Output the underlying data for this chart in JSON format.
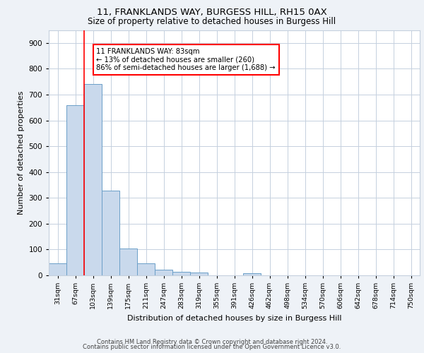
{
  "title_line1": "11, FRANKLANDS WAY, BURGESS HILL, RH15 0AX",
  "title_line2": "Size of property relative to detached houses in Burgess Hill",
  "xlabel": "Distribution of detached houses by size in Burgess Hill",
  "ylabel": "Number of detached properties",
  "footer_line1": "Contains HM Land Registry data © Crown copyright and database right 2024.",
  "footer_line2": "Contains public sector information licensed under the Open Government Licence v3.0.",
  "categories": [
    "31sqm",
    "67sqm",
    "103sqm",
    "139sqm",
    "175sqm",
    "211sqm",
    "247sqm",
    "283sqm",
    "319sqm",
    "355sqm",
    "391sqm",
    "426sqm",
    "462sqm",
    "498sqm",
    "534sqm",
    "570sqm",
    "606sqm",
    "642sqm",
    "678sqm",
    "714sqm",
    "750sqm"
  ],
  "bar_heights": [
    46,
    660,
    740,
    327,
    105,
    47,
    22,
    15,
    10,
    0,
    0,
    7,
    0,
    0,
    0,
    0,
    0,
    0,
    0,
    0,
    0
  ],
  "bar_color": "#c9d9ec",
  "bar_edge_color": "#6b9fc8",
  "red_line_x": 1.5,
  "annotation_text_line1": "11 FRANKLANDS WAY: 83sqm",
  "annotation_text_line2": "← 13% of detached houses are smaller (260)",
  "annotation_text_line3": "86% of semi-detached houses are larger (1,688) →",
  "ylim": [
    0,
    950
  ],
  "yticks": [
    0,
    100,
    200,
    300,
    400,
    500,
    600,
    700,
    800,
    900
  ],
  "background_color": "#eef2f7",
  "plot_background_color": "#ffffff",
  "grid_color": "#c5d0de"
}
